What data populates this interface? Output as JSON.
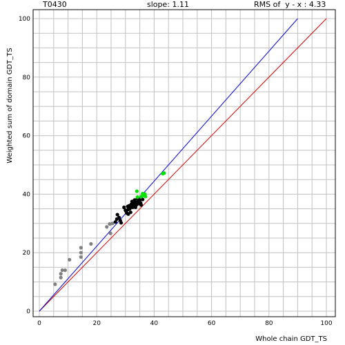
{
  "header": {
    "target_id": "T0430",
    "slope_text": "slope: 1.11",
    "rms_text": "RMS of  y - x : 4.33"
  },
  "chart_data": {
    "type": "scatter",
    "xlabel": "Whole chain GDT_TS",
    "ylabel": "Weighted sum of domain GDT_TS",
    "xlim": [
      0,
      100
    ],
    "ylim": [
      0,
      100
    ],
    "xticks": [
      0,
      20,
      40,
      60,
      80,
      100
    ],
    "yticks": [
      0,
      20,
      40,
      60,
      80,
      100
    ],
    "grid": true,
    "colors": {
      "gray_series": "#808080",
      "black_series": "#000000",
      "green_series": "#00e000",
      "identity_line": "#cc0000",
      "fit_line": "#0000cc",
      "grid": "#c0c0c0"
    },
    "identity_line": {
      "x": [
        0,
        100
      ],
      "y": [
        0,
        100
      ]
    },
    "fit_line": {
      "slope": 1.11,
      "x": [
        0,
        90
      ],
      "y": [
        0,
        100
      ]
    },
    "series": [
      {
        "color_key": "gray_series",
        "points": [
          [
            5.5,
            9.2
          ],
          [
            7.5,
            11.5
          ],
          [
            7.5,
            12.8
          ],
          [
            8.0,
            14.0
          ],
          [
            9.0,
            14.0
          ],
          [
            10.5,
            17.6
          ],
          [
            14.5,
            18.5
          ],
          [
            14.5,
            20.0
          ],
          [
            14.5,
            21.7
          ],
          [
            18.0,
            23.0
          ],
          [
            23.5,
            28.8
          ],
          [
            24.5,
            29.8
          ],
          [
            25.5,
            30.0
          ],
          [
            24.8,
            26.6
          ]
        ]
      },
      {
        "color_key": "black_series",
        "points": [
          [
            26.5,
            30.5
          ],
          [
            27.0,
            31.5
          ],
          [
            27.2,
            33.0
          ],
          [
            27.8,
            32.0
          ],
          [
            28.2,
            31.0
          ],
          [
            28.5,
            30.2
          ],
          [
            29.5,
            35.5
          ],
          [
            30.0,
            34.5
          ],
          [
            30.3,
            34.0
          ],
          [
            30.5,
            33.5
          ],
          [
            31.0,
            33.2
          ],
          [
            31.0,
            34.8
          ],
          [
            31.2,
            36.0
          ],
          [
            31.5,
            35.0
          ],
          [
            31.8,
            33.8
          ],
          [
            32.0,
            36.5
          ],
          [
            32.3,
            37.5
          ],
          [
            32.5,
            35.5
          ],
          [
            32.8,
            36.2
          ],
          [
            33.0,
            37.0
          ],
          [
            33.2,
            38.0
          ],
          [
            33.5,
            36.0
          ],
          [
            33.8,
            37.2
          ],
          [
            34.0,
            36.5
          ],
          [
            34.2,
            38.5
          ],
          [
            34.5,
            37.5
          ],
          [
            34.8,
            36.8
          ],
          [
            35.0,
            38.0
          ],
          [
            35.3,
            37.0
          ],
          [
            35.5,
            36.3
          ],
          [
            36.0,
            38.2
          ],
          [
            33.5,
            35.5
          ],
          [
            32.2,
            35.8
          ],
          [
            30.8,
            35.8
          ]
        ]
      },
      {
        "color_key": "green_series",
        "points": [
          [
            34.0,
            41.0
          ],
          [
            34.2,
            39.0
          ],
          [
            35.5,
            39.2
          ],
          [
            36.0,
            40.2
          ],
          [
            36.5,
            39.5
          ],
          [
            36.8,
            40.0
          ],
          [
            37.0,
            39.2
          ],
          [
            43.0,
            47.0
          ],
          [
            43.5,
            47.2
          ]
        ]
      }
    ]
  }
}
